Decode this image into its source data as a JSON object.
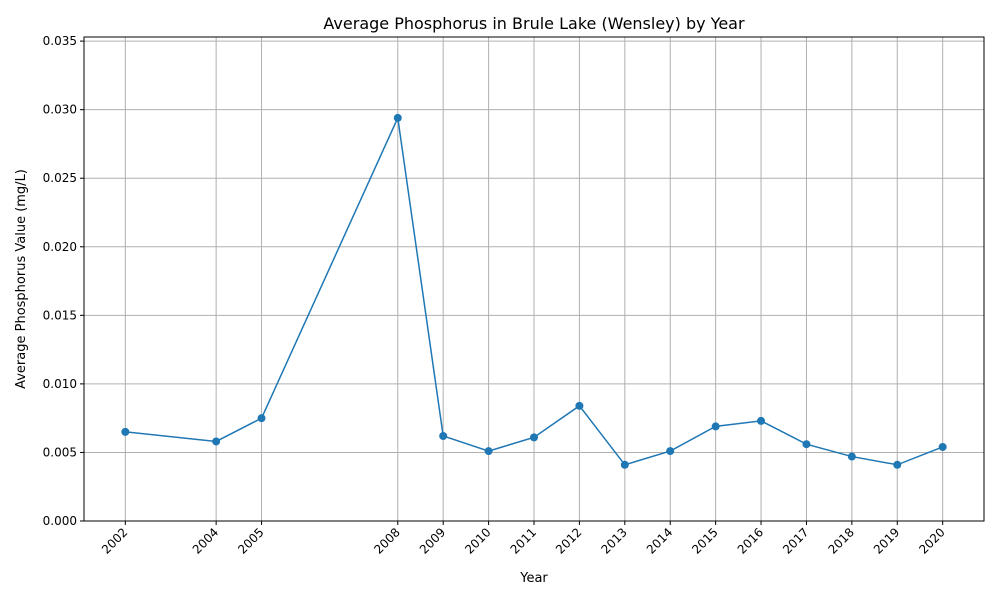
{
  "chart_data": {
    "type": "line",
    "title": "Average Phosphorus in Brule Lake (Wensley) by Year",
    "xlabel": "Year",
    "ylabel": "Average Phosphorus Value (mg/L)",
    "x": [
      2002,
      2004,
      2005,
      2008,
      2009,
      2010,
      2011,
      2012,
      2013,
      2014,
      2015,
      2016,
      2017,
      2018,
      2019,
      2020
    ],
    "x_tick_labels": [
      "2002",
      "2004",
      "2005",
      "2008",
      "2009",
      "2010",
      "2011",
      "2012",
      "2013",
      "2014",
      "2015",
      "2016",
      "2017",
      "2018",
      "2019",
      "2020"
    ],
    "series": [
      {
        "values": [
          0.0065,
          0.0058,
          0.0075,
          0.0294,
          0.0062,
          0.0051,
          0.0061,
          0.0084,
          0.0041,
          0.0051,
          0.0069,
          0.0073,
          0.0056,
          0.0047,
          0.0041,
          0.0054
        ],
        "color": "#1f77b4",
        "marker": "circle"
      }
    ],
    "ylim": [
      0,
      0.0353
    ],
    "xlim": [
      2001.09,
      2020.91
    ],
    "y_ticks": [
      0,
      0.005,
      0.01,
      0.015,
      0.02,
      0.025,
      0.03,
      0.035
    ],
    "y_tick_labels": [
      "0.000",
      "0.005",
      "0.010",
      "0.015",
      "0.020",
      "0.025",
      "0.030",
      "0.035"
    ],
    "grid": true,
    "x_tick_rotation": 45
  }
}
